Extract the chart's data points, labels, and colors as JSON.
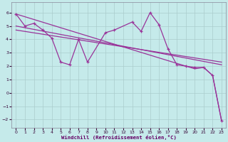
{
  "xlabel": "Windchill (Refroidissement éolien,°C)",
  "bg_color": "#c5eaea",
  "line_color": "#993399",
  "grid_color": "#aacccc",
  "xlim": [
    -0.5,
    23.5
  ],
  "ylim": [
    -2.6,
    6.8
  ],
  "xticks": [
    0,
    1,
    2,
    3,
    4,
    5,
    6,
    7,
    8,
    9,
    10,
    11,
    12,
    13,
    14,
    15,
    16,
    17,
    18,
    19,
    20,
    21,
    22,
    23
  ],
  "yticks": [
    -2,
    -1,
    0,
    1,
    2,
    3,
    4,
    5,
    6
  ],
  "line1_x": [
    0,
    1,
    2,
    3,
    4,
    5,
    6,
    7,
    8,
    10,
    11,
    13,
    14,
    15,
    16,
    17,
    18,
    19,
    20,
    21,
    22,
    23
  ],
  "line1_y": [
    5.9,
    5.0,
    5.2,
    4.7,
    4.1,
    2.3,
    2.1,
    4.0,
    2.3,
    4.5,
    4.7,
    5.3,
    4.6,
    6.0,
    5.1,
    3.3,
    2.1,
    2.0,
    1.9,
    1.9,
    1.3,
    -2.1
  ],
  "line2_x": [
    0,
    19,
    20,
    21,
    22,
    23
  ],
  "line2_y": [
    5.9,
    2.0,
    1.8,
    1.9,
    1.3,
    -2.1
  ],
  "line3_x": [
    0,
    23
  ],
  "line3_y": [
    5.0,
    2.1
  ],
  "line4_x": [
    0,
    23
  ],
  "line4_y": [
    4.7,
    2.3
  ]
}
